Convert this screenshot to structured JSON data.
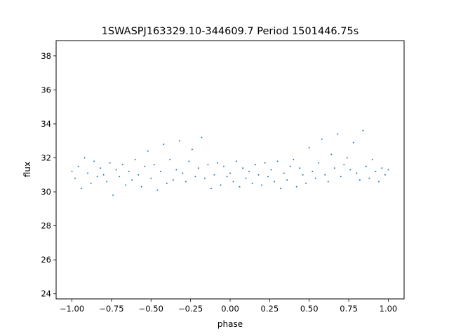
{
  "chart_data": {
    "type": "scatter",
    "title": "1SWASPJ163329.10-344609.7 Period 1501446.75s",
    "xlabel": "phase",
    "ylabel": "flux",
    "xlim": [
      -1.1,
      1.1
    ],
    "ylim": [
      23.7,
      38.9
    ],
    "xticks": [
      {
        "value": -1.0,
        "label": "−1.00"
      },
      {
        "value": -0.75,
        "label": "−0.75"
      },
      {
        "value": -0.5,
        "label": "−0.50"
      },
      {
        "value": -0.25,
        "label": "−0.25"
      },
      {
        "value": 0.0,
        "label": "0.00"
      },
      {
        "value": 0.25,
        "label": "0.25"
      },
      {
        "value": 0.5,
        "label": "0.50"
      },
      {
        "value": 0.75,
        "label": "0.75"
      },
      {
        "value": 1.0,
        "label": "1.00"
      }
    ],
    "yticks": [
      {
        "value": 24,
        "label": "24"
      },
      {
        "value": 26,
        "label": "26"
      },
      {
        "value": 28,
        "label": "28"
      },
      {
        "value": 30,
        "label": "30"
      },
      {
        "value": 32,
        "label": "32"
      },
      {
        "value": 34,
        "label": "34"
      },
      {
        "value": 36,
        "label": "36"
      },
      {
        "value": 38,
        "label": "38"
      }
    ],
    "grid": false,
    "legend": "none",
    "marker_color": "#1f77b4",
    "series": [
      {
        "x": [
          -1.0,
          -0.98,
          -0.96,
          -0.94,
          -0.92,
          -0.9,
          -0.88,
          -0.86,
          -0.84,
          -0.82,
          -0.8,
          -0.78,
          -0.76,
          -0.74,
          -0.72,
          -0.7,
          -0.68,
          -0.66,
          -0.64,
          -0.62,
          -0.6,
          -0.58,
          -0.56,
          -0.54,
          -0.52,
          -0.5,
          -0.48,
          -0.46,
          -0.44,
          -0.42,
          -0.4,
          -0.38,
          -0.36,
          -0.34,
          -0.32,
          -0.3,
          -0.28,
          -0.26,
          -0.24,
          -0.22,
          -0.2,
          -0.18,
          -0.16,
          -0.14,
          -0.12,
          -0.1,
          -0.08,
          -0.06,
          -0.04,
          -0.02,
          0.0,
          0.02,
          0.04,
          0.06,
          0.08,
          0.1,
          0.12,
          0.14,
          0.16,
          0.18,
          0.2,
          0.22,
          0.24,
          0.26,
          0.28,
          0.3,
          0.32,
          0.34,
          0.36,
          0.38,
          0.4,
          0.42,
          0.44,
          0.46,
          0.48,
          0.5,
          0.52,
          0.54,
          0.56,
          0.58,
          0.6,
          0.62,
          0.64,
          0.66,
          0.68,
          0.7,
          0.72,
          0.74,
          0.76,
          0.78,
          0.8,
          0.82,
          0.84,
          0.86,
          0.88,
          0.9,
          0.92,
          0.94,
          0.96,
          0.98,
          1.0
        ],
        "y": [
          31.2,
          30.8,
          31.5,
          30.2,
          32.0,
          31.1,
          30.5,
          31.8,
          30.9,
          31.4,
          31.0,
          30.6,
          31.7,
          29.8,
          31.3,
          30.9,
          31.6,
          30.4,
          31.2,
          30.7,
          31.9,
          31.0,
          30.3,
          31.5,
          32.4,
          30.8,
          31.6,
          30.1,
          31.2,
          32.8,
          30.5,
          31.9,
          30.7,
          31.3,
          33.0,
          31.1,
          30.6,
          31.8,
          32.5,
          30.9,
          31.4,
          33.2,
          30.8,
          31.6,
          30.2,
          31.0,
          31.7,
          30.4,
          31.5,
          30.9,
          31.1,
          30.6,
          31.8,
          30.3,
          31.4,
          30.8,
          31.2,
          30.5,
          31.6,
          31.0,
          30.4,
          31.7,
          30.9,
          31.3,
          30.6,
          31.8,
          30.2,
          31.1,
          30.7,
          31.5,
          31.9,
          30.3,
          31.4,
          31.0,
          30.5,
          32.6,
          31.2,
          30.8,
          31.7,
          33.1,
          31.0,
          30.6,
          32.2,
          31.4,
          33.4,
          30.9,
          31.6,
          32.0,
          31.3,
          32.9,
          31.1,
          30.7,
          33.6,
          31.5,
          30.8,
          31.9,
          31.2,
          30.6,
          31.4,
          31.0,
          31.3
        ]
      }
    ]
  }
}
